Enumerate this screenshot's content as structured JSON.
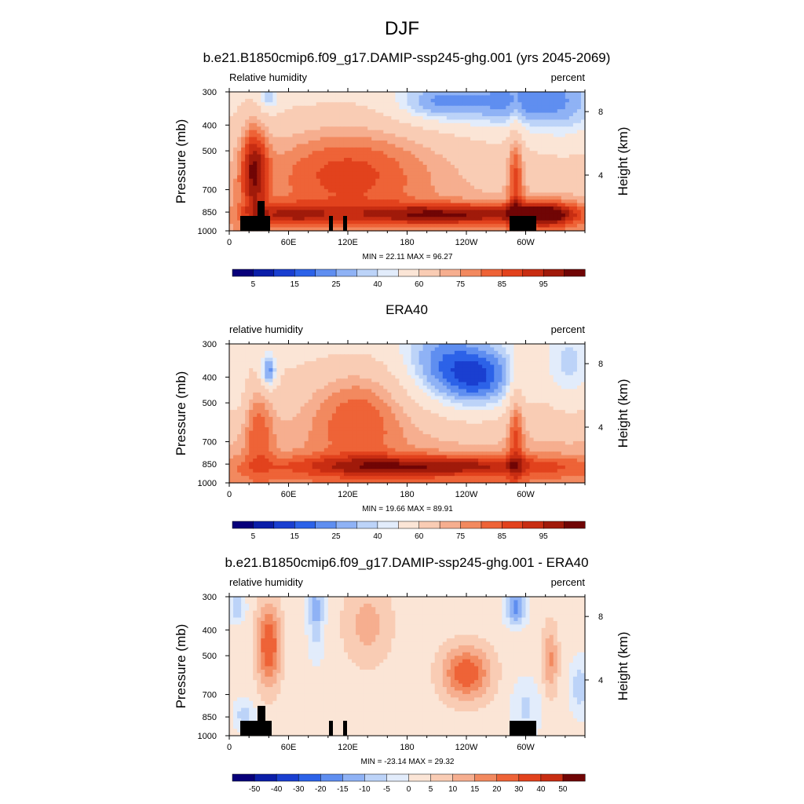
{
  "main_title": "DJF",
  "chart_data": [
    {
      "type": "heatmap",
      "title": "b.e21.B1850cmip6.f09_g17.DAMIP-ssp245-ghg.001 (yrs 2045-2069)",
      "left_string": "Relative humidity",
      "right_string": "percent",
      "ylabel": "Pressure (mb)",
      "ylabel_right": "Height (km)",
      "x_ticks": [
        "0",
        "60E",
        "120E",
        "180",
        "120W",
        "60W"
      ],
      "y_ticks": [
        "300",
        "400",
        "500",
        "700",
        "850",
        "1000"
      ],
      "right_ticks": [
        "8",
        "4"
      ],
      "stats_text": "MIN =  22.11   MAX =  96.27",
      "min": 22.11,
      "max": 96.27,
      "colorbar": {
        "labels": [
          "5",
          "15",
          "25",
          "40",
          "60",
          "75",
          "85",
          "95"
        ],
        "colors": [
          "#08007a",
          "#0b1ea8",
          "#1a3fd0",
          "#2c62e8",
          "#5f8ef0",
          "#8fb2f5",
          "#bcd3f8",
          "#e2ecfb",
          "#fbe5d6",
          "#f9ccb4",
          "#f6ae8f",
          "#f2895f",
          "#ee6337",
          "#e2421d",
          "#c82d12",
          "#a01a0a",
          "#700505"
        ]
      },
      "topography": true
    },
    {
      "type": "heatmap",
      "title": "ERA40",
      "left_string": "relative humidity",
      "right_string": "percent",
      "ylabel": "Pressure (mb)",
      "ylabel_right": "Height (km)",
      "x_ticks": [
        "0",
        "60E",
        "120E",
        "180",
        "120W",
        "60W"
      ],
      "y_ticks": [
        "300",
        "400",
        "500",
        "700",
        "850",
        "1000"
      ],
      "right_ticks": [
        "8",
        "4"
      ],
      "stats_text": "MIN =  19.66   MAX =  89.91",
      "min": 19.66,
      "max": 89.91,
      "colorbar": {
        "labels": [
          "5",
          "15",
          "25",
          "40",
          "60",
          "75",
          "85",
          "95"
        ],
        "colors": [
          "#08007a",
          "#0b1ea8",
          "#1a3fd0",
          "#2c62e8",
          "#5f8ef0",
          "#8fb2f5",
          "#bcd3f8",
          "#e2ecfb",
          "#fbe5d6",
          "#f9ccb4",
          "#f6ae8f",
          "#f2895f",
          "#ee6337",
          "#e2421d",
          "#c82d12",
          "#a01a0a",
          "#700505"
        ]
      },
      "topography": false
    },
    {
      "type": "heatmap",
      "title": "b.e21.B1850cmip6.f09_g17.DAMIP-ssp245-ghg.001 - ERA40",
      "left_string": "relative humidity",
      "right_string": "percent",
      "ylabel": "Pressure (mb)",
      "ylabel_right": "Height (km)",
      "x_ticks": [
        "0",
        "60E",
        "120E",
        "180",
        "120W",
        "60W"
      ],
      "y_ticks": [
        "300",
        "400",
        "500",
        "700",
        "850",
        "1000"
      ],
      "right_ticks": [
        "8",
        "4"
      ],
      "stats_text": "MIN = -23.14   MAX =  29.32",
      "min": -23.14,
      "max": 29.32,
      "colorbar": {
        "labels": [
          "-50",
          "-40",
          "-30",
          "-20",
          "-15",
          "-10",
          "-5",
          "0",
          "5",
          "10",
          "15",
          "20",
          "30",
          "40",
          "50"
        ],
        "colors": [
          "#08007a",
          "#0b1ea8",
          "#1a3fd0",
          "#2c62e8",
          "#5f8ef0",
          "#8fb2f5",
          "#bcd3f8",
          "#e2ecfb",
          "#fbe5d6",
          "#f9ccb4",
          "#f6ae8f",
          "#f2895f",
          "#ee6337",
          "#e2421d",
          "#c82d12",
          "#700505"
        ]
      },
      "topography": true
    }
  ]
}
